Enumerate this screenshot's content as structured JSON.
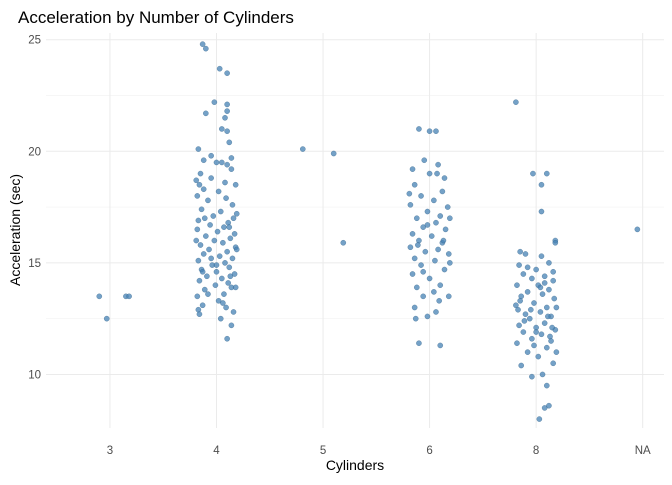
{
  "chart_data": {
    "type": "scatter",
    "title": "Acceleration by Number of Cylinders",
    "xlabel": "Cylinders",
    "ylabel": "Acceleration (sec)",
    "categories": [
      "3",
      "4",
      "5",
      "6",
      "8",
      "NA"
    ],
    "yticks": [
      10,
      15,
      20,
      25
    ],
    "ylim": [
      7.6,
      25.3
    ],
    "grid": true,
    "point_color": "#4682B4",
    "series": [
      {
        "category": "3",
        "points": [
          [
            -0.1,
            13.5
          ],
          [
            0.15,
            13.5
          ],
          [
            0.18,
            13.5
          ],
          [
            -0.03,
            12.5
          ]
        ]
      },
      {
        "category": "4",
        "points": [
          [
            -0.13,
            24.8
          ],
          [
            -0.1,
            24.6
          ],
          [
            0.03,
            23.7
          ],
          [
            0.1,
            23.5
          ],
          [
            -0.02,
            22.2
          ],
          [
            0.1,
            22.1
          ],
          [
            0.1,
            21.8
          ],
          [
            0.08,
            21.5
          ],
          [
            -0.1,
            21.7
          ],
          [
            0.05,
            21.0
          ],
          [
            0.1,
            20.9
          ],
          [
            -0.17,
            20.1
          ],
          [
            0.12,
            20.4
          ],
          [
            -0.12,
            19.6
          ],
          [
            0.0,
            19.5
          ],
          [
            0.05,
            19.5
          ],
          [
            0.1,
            19.4
          ],
          [
            0.14,
            19.2
          ],
          [
            -0.15,
            19.0
          ],
          [
            -0.05,
            18.8
          ],
          [
            0.08,
            18.6
          ],
          [
            -0.16,
            18.5
          ],
          [
            -0.12,
            18.3
          ],
          [
            0.02,
            18.2
          ],
          [
            0.18,
            18.5
          ],
          [
            -0.18,
            18.0
          ],
          [
            0.09,
            17.9
          ],
          [
            -0.08,
            17.8
          ],
          [
            0.15,
            17.6
          ],
          [
            -0.14,
            17.4
          ],
          [
            0.04,
            17.3
          ],
          [
            -0.03,
            17.1
          ],
          [
            0.16,
            17.0
          ],
          [
            -0.17,
            16.9
          ],
          [
            0.11,
            16.8
          ],
          [
            -0.06,
            16.7
          ],
          [
            0.07,
            16.6
          ],
          [
            -0.18,
            16.5
          ],
          [
            0.01,
            16.4
          ],
          [
            0.17,
            16.3
          ],
          [
            -0.1,
            16.2
          ],
          [
            0.13,
            16.1
          ],
          [
            -0.02,
            16.0
          ],
          [
            0.06,
            15.9
          ],
          [
            -0.15,
            15.8
          ],
          [
            0.18,
            15.7
          ],
          [
            -0.07,
            15.6
          ],
          [
            0.1,
            15.5
          ],
          [
            -0.12,
            15.4
          ],
          [
            0.03,
            15.3
          ],
          [
            0.15,
            15.2
          ],
          [
            -0.17,
            15.1
          ],
          [
            0.08,
            15.0
          ],
          [
            -0.04,
            14.9
          ],
          [
            0.12,
            14.8
          ],
          [
            -0.14,
            14.7
          ],
          [
            0.0,
            14.6
          ],
          [
            0.17,
            14.5
          ],
          [
            -0.09,
            14.4
          ],
          [
            0.05,
            14.3
          ],
          [
            -0.16,
            14.2
          ],
          [
            0.11,
            14.1
          ],
          [
            -0.01,
            14.0
          ],
          [
            0.14,
            13.9
          ],
          [
            -0.11,
            13.8
          ],
          [
            0.07,
            13.6
          ],
          [
            -0.18,
            13.5
          ],
          [
            0.02,
            13.3
          ],
          [
            -0.13,
            13.1
          ],
          [
            0.09,
            13.0
          ],
          [
            -0.17,
            12.9
          ],
          [
            0.16,
            12.8
          ],
          [
            -0.16,
            12.7
          ],
          [
            0.04,
            12.5
          ],
          [
            0.14,
            12.2
          ],
          [
            0.1,
            11.6
          ],
          [
            -0.05,
            19.8
          ],
          [
            0.14,
            19.7
          ],
          [
            -0.19,
            18.7
          ],
          [
            0.19,
            17.2
          ],
          [
            -0.11,
            17.0
          ],
          [
            0.12,
            16.6
          ],
          [
            -0.19,
            16.0
          ],
          [
            0.19,
            15.6
          ],
          [
            -0.05,
            15.2
          ],
          [
            0.0,
            14.9
          ],
          [
            -0.13,
            14.6
          ],
          [
            0.13,
            14.4
          ],
          [
            0.18,
            13.9
          ],
          [
            -0.08,
            13.6
          ],
          [
            0.06,
            13.2
          ]
        ]
      },
      {
        "category": "5",
        "points": [
          [
            -0.19,
            20.1
          ],
          [
            0.1,
            19.9
          ],
          [
            0.19,
            15.9
          ]
        ]
      },
      {
        "category": "6",
        "points": [
          [
            -0.1,
            21.0
          ],
          [
            0.0,
            20.9
          ],
          [
            0.06,
            20.9
          ],
          [
            -0.05,
            19.6
          ],
          [
            0.08,
            19.4
          ],
          [
            -0.16,
            19.2
          ],
          [
            0.0,
            19.0
          ],
          [
            0.14,
            18.8
          ],
          [
            -0.14,
            18.5
          ],
          [
            0.12,
            18.2
          ],
          [
            -0.08,
            18.0
          ],
          [
            0.04,
            17.8
          ],
          [
            -0.18,
            17.6
          ],
          [
            0.17,
            17.5
          ],
          [
            -0.02,
            17.3
          ],
          [
            0.1,
            17.1
          ],
          [
            -0.12,
            17.0
          ],
          [
            0.06,
            16.8
          ],
          [
            -0.06,
            16.6
          ],
          [
            0.15,
            16.5
          ],
          [
            -0.16,
            16.3
          ],
          [
            0.02,
            16.2
          ],
          [
            -0.1,
            16.0
          ],
          [
            0.12,
            15.9
          ],
          [
            -0.18,
            15.7
          ],
          [
            0.08,
            15.6
          ],
          [
            -0.04,
            15.5
          ],
          [
            0.18,
            15.4
          ],
          [
            -0.14,
            15.2
          ],
          [
            0.05,
            15.1
          ],
          [
            -0.08,
            14.9
          ],
          [
            0.14,
            14.7
          ],
          [
            -0.16,
            14.5
          ],
          [
            0.0,
            14.3
          ],
          [
            0.1,
            14.0
          ],
          [
            -0.12,
            13.9
          ],
          [
            0.04,
            13.7
          ],
          [
            -0.06,
            13.5
          ],
          [
            0.18,
            13.5
          ],
          [
            -0.14,
            13.0
          ],
          [
            0.06,
            12.8
          ],
          [
            -0.02,
            12.6
          ],
          [
            -0.1,
            11.4
          ],
          [
            0.1,
            11.3
          ],
          [
            0.07,
            19.0
          ],
          [
            -0.19,
            18.1
          ],
          [
            0.19,
            17.0
          ],
          [
            -0.02,
            16.7
          ],
          [
            0.13,
            16.0
          ],
          [
            -0.11,
            15.8
          ],
          [
            0.19,
            15.0
          ],
          [
            -0.06,
            14.6
          ],
          [
            0.09,
            13.3
          ],
          [
            -0.13,
            12.5
          ]
        ]
      },
      {
        "category": "8",
        "points": [
          [
            -0.19,
            22.2
          ],
          [
            -0.03,
            19.0
          ],
          [
            0.1,
            19.0
          ],
          [
            0.05,
            18.5
          ],
          [
            0.05,
            17.3
          ],
          [
            0.18,
            16.0
          ],
          [
            0.18,
            15.9
          ],
          [
            -0.15,
            15.5
          ],
          [
            -0.1,
            15.4
          ],
          [
            0.05,
            15.3
          ],
          [
            0.12,
            15.0
          ],
          [
            -0.16,
            14.9
          ],
          [
            0.0,
            14.7
          ],
          [
            0.16,
            14.6
          ],
          [
            -0.12,
            14.5
          ],
          [
            0.08,
            14.4
          ],
          [
            -0.04,
            14.3
          ],
          [
            0.16,
            14.2
          ],
          [
            -0.18,
            14.0
          ],
          [
            0.02,
            14.0
          ],
          [
            0.12,
            13.8
          ],
          [
            -0.08,
            13.7
          ],
          [
            0.06,
            13.6
          ],
          [
            -0.14,
            13.5
          ],
          [
            0.17,
            13.4
          ],
          [
            -0.02,
            13.2
          ],
          [
            0.1,
            13.0
          ],
          [
            -0.17,
            12.9
          ],
          [
            0.04,
            12.8
          ],
          [
            -0.1,
            12.7
          ],
          [
            0.14,
            12.6
          ],
          [
            -0.06,
            12.5
          ],
          [
            0.08,
            12.3
          ],
          [
            -0.16,
            12.2
          ],
          [
            0.0,
            12.1
          ],
          [
            0.18,
            12.0
          ],
          [
            -0.12,
            11.9
          ],
          [
            0.05,
            11.8
          ],
          [
            -0.04,
            11.6
          ],
          [
            0.14,
            11.5
          ],
          [
            -0.18,
            11.4
          ],
          [
            0.1,
            11.2
          ],
          [
            -0.08,
            11.0
          ],
          [
            0.02,
            10.8
          ],
          [
            0.16,
            10.5
          ],
          [
            -0.14,
            10.4
          ],
          [
            0.06,
            10.0
          ],
          [
            -0.04,
            9.9
          ],
          [
            0.1,
            9.5
          ],
          [
            0.08,
            8.5
          ],
          [
            0.12,
            8.6
          ],
          [
            0.03,
            8.0
          ],
          [
            -0.19,
            13.1
          ],
          [
            0.19,
            13.0
          ],
          [
            -0.11,
            12.4
          ],
          [
            0.13,
            11.7
          ],
          [
            -0.02,
            11.3
          ],
          [
            0.19,
            11.0
          ],
          [
            -0.08,
            14.8
          ],
          [
            0.08,
            14.1
          ],
          [
            -0.15,
            13.3
          ],
          [
            0.15,
            12.1
          ],
          [
            0.0,
            11.9
          ],
          [
            -0.05,
            12.9
          ],
          [
            0.04,
            13.9
          ],
          [
            0.11,
            12.6
          ]
        ]
      },
      {
        "category": "NA",
        "points": [
          [
            -0.05,
            16.5
          ]
        ]
      }
    ]
  }
}
